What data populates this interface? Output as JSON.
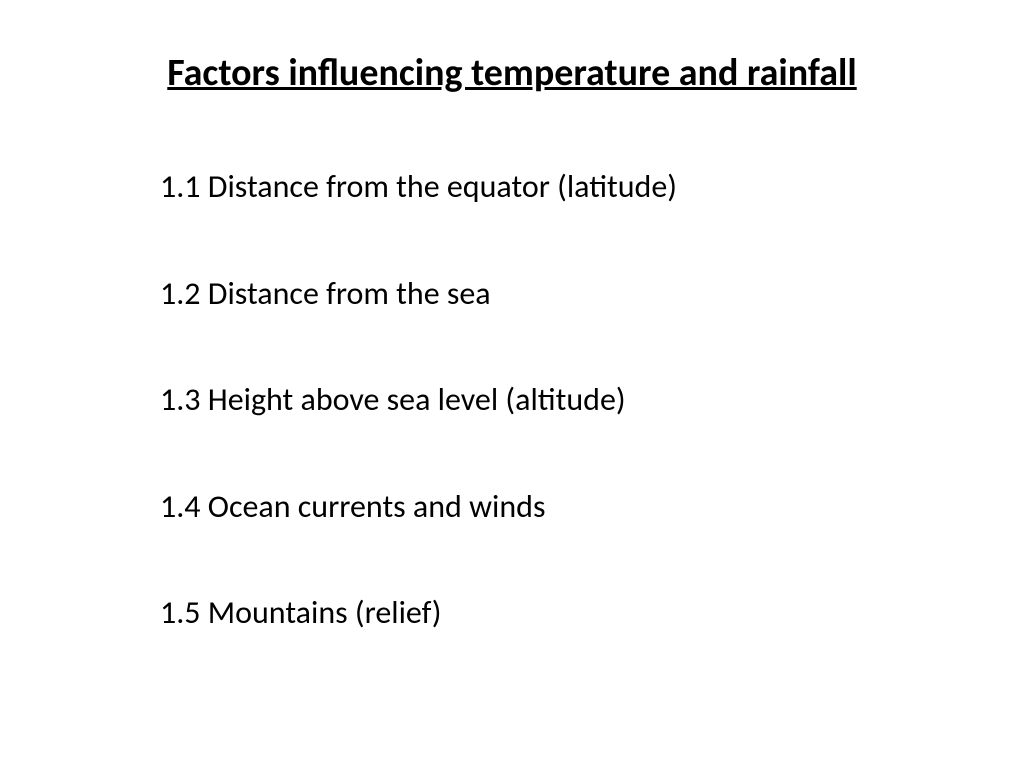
{
  "title": "Factors influencing temperature and rainfall",
  "items": [
    "1.1 Distance from the equator (latitude)",
    "1.2 Distance from the sea",
    "1.3 Height above sea level (altitude)",
    "1.4 Ocean currents and winds",
    "1.5 Mountains (relief)"
  ],
  "styling": {
    "background_color": "#ffffff",
    "text_color": "#000000",
    "title_fontsize": 38,
    "title_fontweight": "bold",
    "title_decoration": "underline",
    "item_fontsize": 32,
    "item_fontweight": "normal",
    "font_family": "Calibri, Arial, sans-serif",
    "item_spacing": 65,
    "list_indent": 90
  }
}
